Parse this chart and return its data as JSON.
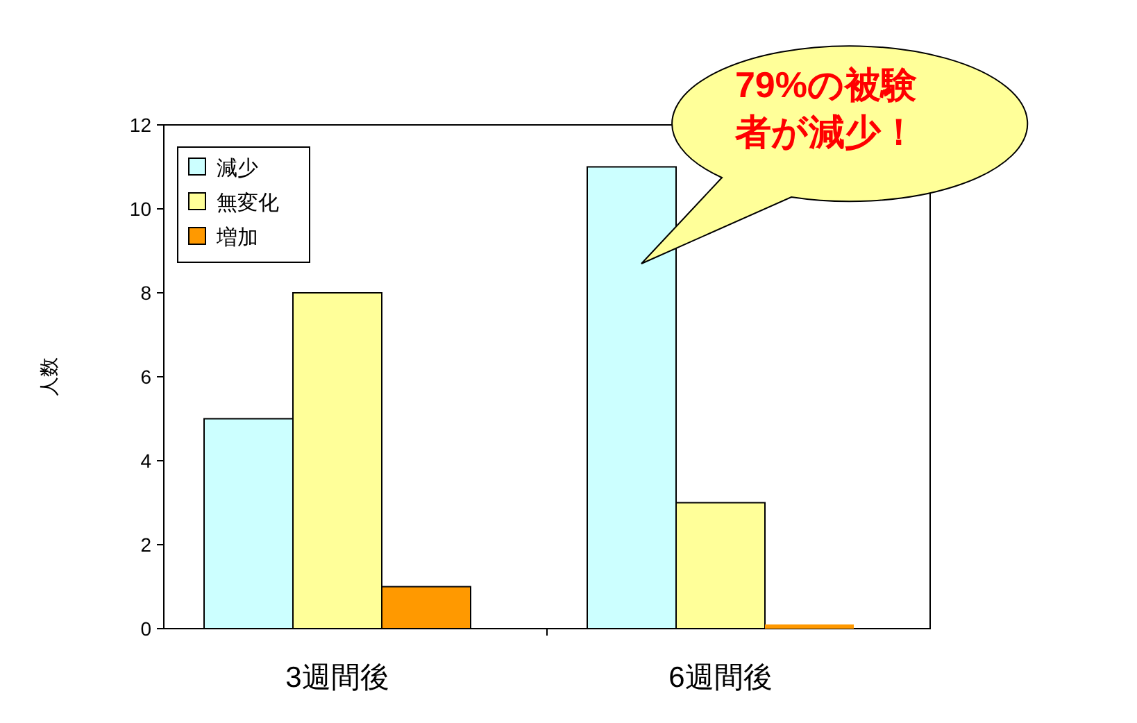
{
  "chart_data": {
    "type": "bar",
    "ylabel": "人数",
    "categories": [
      "3週間後",
      "6週間後"
    ],
    "series": [
      {
        "name": "減少",
        "color": "#ccffff",
        "values": [
          5,
          11
        ]
      },
      {
        "name": "無変化",
        "color": "#ffff99",
        "values": [
          8,
          3
        ]
      },
      {
        "name": "増加",
        "color": "#ff9900",
        "values": [
          1,
          0
        ]
      }
    ],
    "ylim": [
      0,
      12
    ],
    "yticks": [
      0,
      2,
      4,
      6,
      8,
      10,
      12
    ],
    "grid": false,
    "legend": "top left",
    "annotations": [
      "79%の被験者が減少！"
    ]
  }
}
